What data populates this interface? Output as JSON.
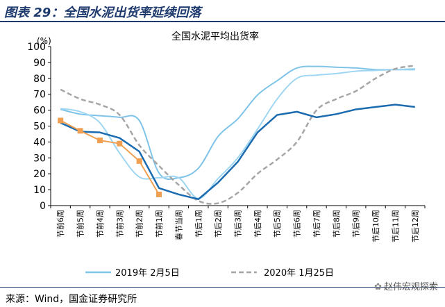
{
  "header": {
    "figure_title": "图表 29：全国水泥出货率延续回落"
  },
  "source": "来源：Wind，国金证券研究所",
  "watermark": "赵伟宏观探索",
  "chart_data": {
    "type": "line",
    "title": "全国水泥平均出货率",
    "unit": "(%)",
    "ylim": [
      0,
      100
    ],
    "yticks": [
      0,
      10,
      20,
      30,
      40,
      50,
      60,
      70,
      80,
      90,
      100
    ],
    "grid": false,
    "legend_position": "bottom",
    "categories": [
      "节前6周",
      "节前5周",
      "节前4周",
      "节前3周",
      "节前2周",
      "节前1周",
      "春节当周",
      "节后1周",
      "节后2周",
      "节后3周",
      "节后4周",
      "节后5周",
      "节后6周",
      "节后7周",
      "节后8周",
      "节后9周",
      "节后10周",
      "节后11周",
      "节后12周"
    ],
    "series": [
      {
        "name": "2019年 2月5日",
        "color": "#7fc4e8",
        "style": "solid",
        "values": [
          60.5,
          57.5,
          56.5,
          55.5,
          53.5,
          20.5,
          17.5,
          23.5,
          43.5,
          54.5,
          69.5,
          78.5,
          86.5,
          87.5,
          87.0,
          86.5,
          85.5,
          85.5,
          85.5
        ]
      },
      {
        "name": "",
        "color": "#9fd6f2",
        "style": "solid",
        "values": [
          61,
          59,
          52,
          33,
          18,
          17.5,
          17.5,
          4.5,
          17,
          30,
          48,
          67,
          80,
          82,
          83,
          84.5,
          85,
          85.5,
          86
        ]
      },
      {
        "name": "2020年 1月25日",
        "color": "#a6a6a6",
        "style": "dashed",
        "values": [
          73,
          67,
          63.5,
          57,
          38,
          25,
          13,
          3,
          1.5,
          8,
          20,
          29,
          40,
          60,
          67,
          72,
          80,
          86,
          88
        ]
      },
      {
        "name": "",
        "color": "#1b6bb0",
        "style": "solid",
        "values": [
          52,
          46.5,
          46,
          42.5,
          34,
          11,
          7,
          4,
          14.5,
          27.5,
          46,
          57,
          59,
          55.5,
          57.5,
          60.5,
          62,
          63.5,
          62
        ]
      },
      {
        "name": "",
        "color": "#f0a050",
        "style": "solid-marker",
        "values": [
          53.5,
          47,
          41,
          39,
          28,
          7,
          null,
          null,
          null,
          null,
          null,
          null,
          null,
          null,
          null,
          null,
          null,
          null,
          null
        ]
      }
    ]
  }
}
